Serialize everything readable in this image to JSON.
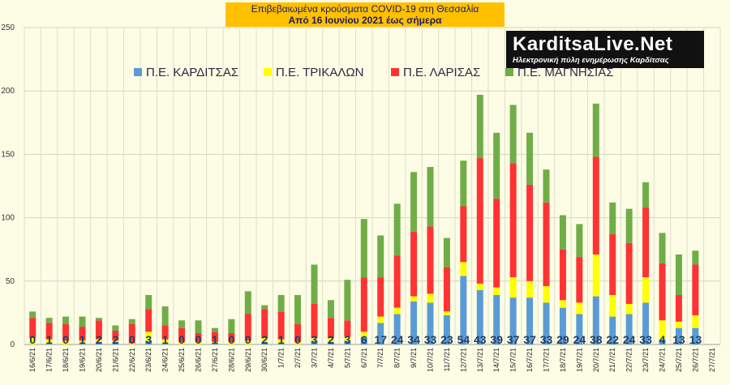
{
  "title": {
    "line1": "Επιβεβαιωμένα κρούσματα COVID-19 στη Θεσσαλία",
    "line2": "Από 16 Ιουνίου 2021 έως σήμερα"
  },
  "logo": {
    "main": "KarditsaLive.Net",
    "sub": "Ηλεκτρονική πύλη ενημέρωσης Καρδίτσας"
  },
  "chart_data": {
    "type": "bar",
    "stacked": true,
    "grid": true,
    "legend_position": "top",
    "ylim": [
      0,
      250
    ],
    "yticks": [
      0,
      50,
      100,
      150,
      200,
      250
    ],
    "categories": [
      "16/6/21",
      "17/6/21",
      "18/6/21",
      "19/6/21",
      "20/6/21",
      "21/6/21",
      "22/6/21",
      "23/6/21",
      "24/6/21",
      "25/6/21",
      "26/6/21",
      "27/6/21",
      "28/6/21",
      "29/6/21",
      "30/6/21",
      "1/7/21",
      "2/7/21",
      "3/7/21",
      "4/7/21",
      "5/7/21",
      "6/7/21",
      "7/7/21",
      "8/7/21",
      "9/7/21",
      "10/7/21",
      "11/7/21",
      "12/7/21",
      "13/7/21",
      "14/7/21",
      "15/7/21",
      "16/7/21",
      "17/7/21",
      "18/7/21",
      "19/7/21",
      "20/7/21",
      "21/7/21",
      "22/7/21",
      "23/7/21",
      "24/7/21",
      "25/7/21",
      "26/7/21",
      "27/7/21"
    ],
    "series": [
      {
        "name": "Π.Ε. ΚΑΡΔΙΤΣΑΣ",
        "color": "#5b9bd5",
        "values": [
          0,
          1,
          0,
          1,
          2,
          2,
          0,
          3,
          1,
          0,
          0,
          1,
          0,
          0,
          2,
          1,
          0,
          3,
          2,
          3,
          6,
          17,
          24,
          34,
          33,
          23,
          54,
          43,
          39,
          37,
          37,
          33,
          29,
          24,
          38,
          22,
          24,
          33,
          4,
          13,
          13,
          0
        ]
      },
      {
        "name": "Π.Ε. ΤΡΙΚΑΛΩΝ",
        "color": "#ffff00",
        "values": [
          5,
          3,
          3,
          2,
          2,
          1,
          1,
          7,
          3,
          2,
          2,
          1,
          2,
          3,
          3,
          3,
          2,
          2,
          3,
          3,
          4,
          5,
          5,
          4,
          7,
          3,
          11,
          5,
          6,
          16,
          13,
          13,
          6,
          9,
          33,
          17,
          8,
          20,
          15,
          5,
          10,
          0
        ]
      },
      {
        "name": "Π.Ε. ΛΑΡΙΣΑΣ",
        "color": "#ff3333",
        "values": [
          16,
          13,
          13,
          11,
          15,
          8,
          15,
          18,
          11,
          11,
          7,
          8,
          7,
          21,
          23,
          22,
          14,
          27,
          16,
          13,
          43,
          31,
          41,
          51,
          53,
          35,
          44,
          99,
          70,
          90,
          76,
          66,
          40,
          36,
          77,
          48,
          48,
          55,
          45,
          21,
          40,
          0
        ]
      },
      {
        "name": "Π.Ε. ΜΑΓΝΗΣΙΑΣ",
        "color": "#70ad47",
        "values": [
          5,
          4,
          6,
          8,
          2,
          4,
          4,
          11,
          15,
          6,
          10,
          3,
          11,
          18,
          3,
          13,
          23,
          31,
          14,
          32,
          46,
          33,
          41,
          47,
          47,
          23,
          36,
          50,
          52,
          46,
          41,
          26,
          27,
          26,
          42,
          25,
          27,
          20,
          24,
          32,
          11,
          0
        ]
      }
    ],
    "data_labels": [
      "0",
      "1",
      "0",
      "1",
      "2",
      "2",
      "0",
      "3",
      "1",
      "0",
      "0",
      "1",
      "0",
      "0",
      "2",
      "1",
      "0",
      "3",
      "2",
      "3",
      "6",
      "17",
      "24",
      "34",
      "33",
      "23",
      "54",
      "43",
      "39",
      "37",
      "37",
      "33",
      "29",
      "24",
      "38",
      "22",
      "24",
      "33",
      "4",
      "13",
      "13",
      ""
    ]
  }
}
